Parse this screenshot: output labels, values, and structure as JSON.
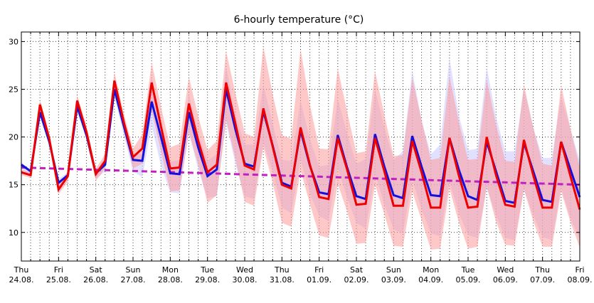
{
  "chart_data": {
    "type": "line",
    "title": "6-hourly temperature (°C)",
    "xlabel": "",
    "ylabel": "",
    "ylim": [
      7,
      31
    ],
    "yticks": [
      10,
      15,
      20,
      25,
      30
    ],
    "grid": true,
    "x_day_ticks": [
      {
        "day": "Thu",
        "date": "24.08."
      },
      {
        "day": "Fri",
        "date": "25.08."
      },
      {
        "day": "Sat",
        "date": "26.08."
      },
      {
        "day": "Sun",
        "date": "27.08."
      },
      {
        "day": "Mon",
        "date": "28.08."
      },
      {
        "day": "Tue",
        "date": "29.08."
      },
      {
        "day": "Wed",
        "date": "30.08."
      },
      {
        "day": "Thu",
        "date": "31.08."
      },
      {
        "day": "Fri",
        "date": "01.09."
      },
      {
        "day": "Sat",
        "date": "02.09."
      },
      {
        "day": "Sun",
        "date": "03.09."
      },
      {
        "day": "Mon",
        "date": "04.09."
      },
      {
        "day": "Tue",
        "date": "05.09."
      },
      {
        "day": "Wed",
        "date": "06.09."
      },
      {
        "day": "Thu",
        "date": "07.09."
      },
      {
        "day": "Fri",
        "date": "08.09."
      }
    ],
    "steps_per_day": 4,
    "colors": {
      "blue_series": "#1010e0",
      "red_series": "#ee0000",
      "trend": "#c020c0",
      "blue_band": "#c8c8ff",
      "red_band": "#ff9a9a"
    },
    "series": [
      {
        "values": [
          17.1,
          16.4,
          22.6,
          19.5,
          15.2,
          16.0,
          23.2,
          20.2,
          16.2,
          17.1,
          25.0,
          21.2,
          17.6,
          17.5,
          23.7,
          20.0,
          16.2,
          16.1,
          22.6,
          18.9,
          15.9,
          16.6,
          25.0,
          20.8,
          17.2,
          16.9,
          22.7,
          19.1,
          15.2,
          14.8,
          20.7,
          17.0,
          14.2,
          14.0,
          20.2,
          16.8,
          13.8,
          13.5,
          20.3,
          16.9,
          13.9,
          13.6,
          20.1,
          16.9,
          13.9,
          13.8,
          19.9,
          16.6,
          13.8,
          13.4,
          19.5,
          16.4,
          13.3,
          13.1,
          19.4,
          16.4,
          13.4,
          13.2,
          19.5,
          16.6,
          13.7
        ]
      },
      {
        "values": [
          16.3,
          16.0,
          23.4,
          19.8,
          14.5,
          15.9,
          23.8,
          20.5,
          16.1,
          17.5,
          25.9,
          21.6,
          17.9,
          18.8,
          25.7,
          21.1,
          16.7,
          16.8,
          23.5,
          19.6,
          16.3,
          17.1,
          25.7,
          21.4,
          17.0,
          16.6,
          23.0,
          19.0,
          15.0,
          14.6,
          21.0,
          17.1,
          13.7,
          13.5,
          19.9,
          16.6,
          12.9,
          13.0,
          19.9,
          16.4,
          12.8,
          12.8,
          19.6,
          16.3,
          12.6,
          12.6,
          19.9,
          16.0,
          12.6,
          12.7,
          20.0,
          16.0,
          12.9,
          12.7,
          19.7,
          16.0,
          12.6,
          12.6,
          19.5,
          15.9,
          12.4
        ]
      }
    ],
    "trend": {
      "start": 16.8,
      "end": 15.0
    },
    "bands": {
      "blue_upper": [
        17.3,
        16.6,
        23.0,
        19.9,
        15.6,
        16.3,
        23.6,
        20.6,
        16.6,
        17.5,
        25.5,
        21.7,
        18.2,
        18.3,
        26.5,
        20.8,
        17.4,
        17.6,
        24.5,
        20.4,
        17.5,
        18.2,
        27.4,
        22.4,
        19.2,
        19.2,
        25.5,
        21.4,
        17.6,
        17.5,
        23.8,
        19.8,
        16.9,
        17.1,
        24.0,
        20.4,
        17.2,
        17.7,
        25.0,
        21.0,
        17.6,
        18.5,
        27.0,
        21.7,
        18.2,
        19.2,
        28.3,
        22.3,
        18.6,
        18.8,
        27.3,
        22.1,
        18.5,
        18.5,
        25.0,
        21.0,
        17.8,
        17.8,
        24.3,
        20.8,
        17.5
      ],
      "blue_lower": [
        16.7,
        15.8,
        22.1,
        19.1,
        14.8,
        15.6,
        22.7,
        19.7,
        15.6,
        16.4,
        24.2,
        20.2,
        16.4,
        15.8,
        21.2,
        17.0,
        14.2,
        14.1,
        20.4,
        16.6,
        13.6,
        13.8,
        21.5,
        17.2,
        13.8,
        13.5,
        19.4,
        16.3,
        12.6,
        12.0,
        17.6,
        14.1,
        11.7,
        11.2,
        16.8,
        13.6,
        11.0,
        10.4,
        16.1,
        12.9,
        10.3,
        9.9,
        15.5,
        12.4,
        9.9,
        9.6,
        15.3,
        12.0,
        9.7,
        9.4,
        14.7,
        11.8,
        9.4,
        9.2,
        14.5,
        11.8,
        9.5,
        9.2,
        14.6,
        11.5,
        9.3
      ],
      "red_upper": [
        16.6,
        16.3,
        23.9,
        20.3,
        15.0,
        16.4,
        24.4,
        21.2,
        16.7,
        18.2,
        26.8,
        22.5,
        18.8,
        20.3,
        27.8,
        23.2,
        18.9,
        19.3,
        26.3,
        22.2,
        18.6,
        19.6,
        29.0,
        24.6,
        20.4,
        20.0,
        29.5,
        24.5,
        20.2,
        19.8,
        29.2,
        23.4,
        18.8,
        18.7,
        27.2,
        22.7,
        18.3,
        18.5,
        26.9,
        22.3,
        18.0,
        18.1,
        26.2,
        21.8,
        17.6,
        17.8,
        26.4,
        21.6,
        17.6,
        17.7,
        26.0,
        21.3,
        17.5,
        17.4,
        25.5,
        21.0,
        17.2,
        17.0,
        25.4,
        20.9,
        16.8
      ],
      "red_lower": [
        16.0,
        15.7,
        22.8,
        19.2,
        14.0,
        15.3,
        23.1,
        19.7,
        15.4,
        16.7,
        24.8,
        20.6,
        16.7,
        17.2,
        22.7,
        18.5,
        14.3,
        14.4,
        20.5,
        17.1,
        13.1,
        13.9,
        21.8,
        17.7,
        13.2,
        12.8,
        18.9,
        15.2,
        11.0,
        10.6,
        16.5,
        13.0,
        9.7,
        9.4,
        15.1,
        12.2,
        8.8,
        8.9,
        15.0,
        11.9,
        8.6,
        8.5,
        14.3,
        11.3,
        8.2,
        8.3,
        14.6,
        11.1,
        8.3,
        8.5,
        14.8,
        11.1,
        8.7,
        8.6,
        14.5,
        11.2,
        8.5,
        8.5,
        14.3,
        11.1,
        8.4
      ]
    }
  }
}
